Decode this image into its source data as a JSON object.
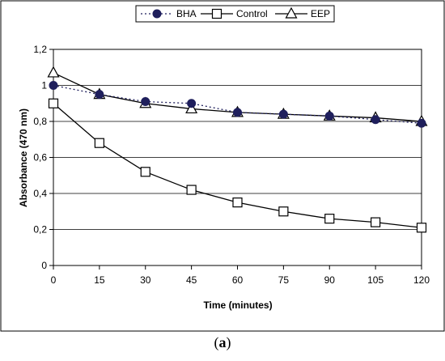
{
  "chart_data": {
    "type": "line",
    "title": "",
    "xlabel": "Time (minutes)",
    "ylabel": "Absorbance (470 nm)",
    "x": [
      0,
      15,
      30,
      45,
      60,
      75,
      90,
      105,
      120
    ],
    "x_ticks": [
      "0",
      "15",
      "30",
      "45",
      "60",
      "75",
      "90",
      "105",
      "120"
    ],
    "xlim": [
      0,
      120
    ],
    "ylim": [
      0,
      1.2
    ],
    "y_ticks": [
      "0",
      "0,2",
      "0,4",
      "0,6",
      "0,8",
      "1",
      "1,2"
    ],
    "y_tick_values": [
      0,
      0.2,
      0.4,
      0.6,
      0.8,
      1.0,
      1.2
    ],
    "grid": true,
    "legend_position": "top-center",
    "series": [
      {
        "name": "BHA",
        "values": [
          1.0,
          0.95,
          0.91,
          0.9,
          0.85,
          0.84,
          0.83,
          0.81,
          0.79
        ],
        "marker": "filled-circle",
        "line_style": "dotted",
        "color": "#1f1f5c"
      },
      {
        "name": "Control",
        "values": [
          0.9,
          0.68,
          0.52,
          0.42,
          0.35,
          0.3,
          0.26,
          0.24,
          0.21
        ],
        "marker": "open-square",
        "line_style": "solid",
        "color": "#000000"
      },
      {
        "name": "EEP",
        "values": [
          1.07,
          0.95,
          0.9,
          0.87,
          0.85,
          0.84,
          0.83,
          0.82,
          0.8
        ],
        "marker": "open-triangle",
        "line_style": "solid",
        "color": "#000000"
      }
    ]
  },
  "caption": {
    "open": "(",
    "letter": "a",
    "close": ")"
  }
}
